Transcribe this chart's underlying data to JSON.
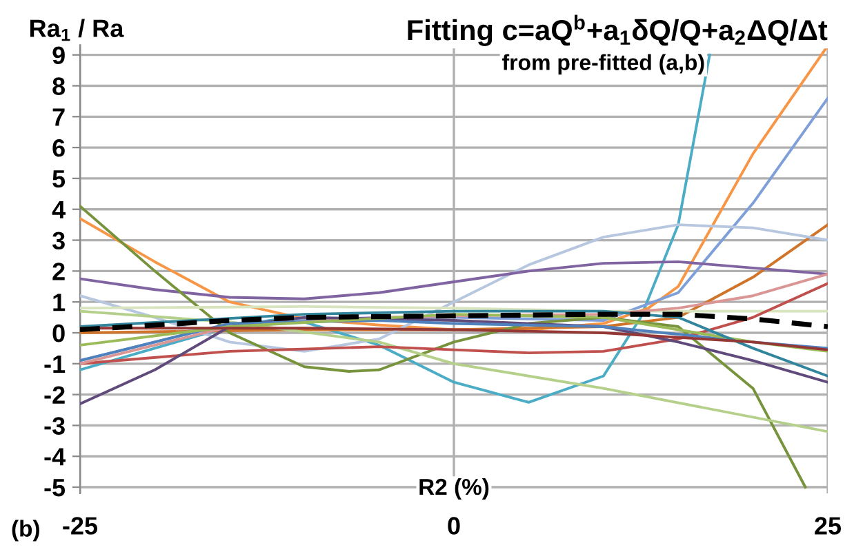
{
  "chart_data": {
    "type": "line",
    "title": "Fitting c=aQ$^{b}$+a$_{1}$δQ/Q+a$_{2}$ΔQ/Δt",
    "subtitle": "from pre-fitted (a,b)",
    "xlabel": "R2 (%)",
    "ylabel": "Ra$_{1}$ / Ra",
    "annotations": [
      "(b)"
    ],
    "xlim": [
      -25,
      25
    ],
    "ylim": [
      -5.2,
      9.35
    ],
    "xticks": [
      -25,
      0,
      25
    ],
    "yticks": [
      -5,
      -4,
      -3,
      -2,
      -1,
      0,
      1,
      2,
      3,
      4,
      5,
      6,
      7,
      8,
      9
    ],
    "grid": true,
    "marker": "none",
    "line_style": "solid",
    "series": [
      {
        "color": "#4bacc6",
        "x": [
          -25,
          -20,
          -15,
          -11,
          -5,
          0,
          5,
          10,
          12.5,
          15,
          17.1
        ],
        "values": [
          -1.2,
          -0.5,
          0.2,
          0.5,
          -0.4,
          -1.6,
          -2.25,
          -1.4,
          0.5,
          3.5,
          9.0
        ]
      },
      {
        "color": "#f79646",
        "x": [
          -25,
          -20,
          -15,
          -10,
          -5,
          0,
          5,
          10,
          13,
          15,
          20,
          25
        ],
        "values": [
          3.7,
          2.3,
          1.0,
          0.45,
          0.25,
          0.1,
          0.1,
          0.3,
          0.8,
          1.5,
          5.8,
          9.3
        ]
      },
      {
        "color": "#7f9fd8",
        "x": [
          -25,
          -15,
          -5,
          0,
          10,
          15,
          20,
          25
        ],
        "values": [
          -0.9,
          0.3,
          0.5,
          0.5,
          0.4,
          1.3,
          4.2,
          7.6
        ]
      },
      {
        "color": "#d0742a",
        "x": [
          -25,
          -10,
          0,
          10,
          15,
          20,
          25
        ],
        "values": [
          0.0,
          0.1,
          0.1,
          0.2,
          0.5,
          1.8,
          3.5
        ]
      },
      {
        "color": "#b8c7e0",
        "x": [
          -25,
          -20,
          -15,
          -10,
          -5,
          0,
          5,
          10,
          15,
          20,
          25
        ],
        "values": [
          1.2,
          0.5,
          -0.3,
          -0.6,
          -0.2,
          1.0,
          2.2,
          3.1,
          3.5,
          3.4,
          3.0
        ]
      },
      {
        "color": "#8064a2",
        "x": [
          -25,
          -20,
          -15,
          -10,
          -5,
          0,
          5,
          10,
          15,
          20,
          25
        ],
        "values": [
          1.75,
          1.4,
          1.15,
          1.1,
          1.3,
          1.65,
          2.0,
          2.25,
          2.3,
          2.1,
          1.9
        ]
      },
      {
        "color": "#77933c",
        "x": [
          -25,
          -20,
          -15,
          -10,
          -7,
          -5,
          0,
          5,
          10,
          15,
          20,
          23.5
        ],
        "values": [
          4.1,
          2.0,
          0.0,
          -1.1,
          -1.25,
          -1.2,
          -0.3,
          0.3,
          0.5,
          0.2,
          -1.8,
          -5.0
        ]
      },
      {
        "color": "#b5d08a",
        "x": [
          -25,
          -15,
          -5,
          0,
          10,
          25
        ],
        "values": [
          0.7,
          0.35,
          -0.3,
          -1.0,
          -1.8,
          -3.2
        ]
      },
      {
        "color": "#d7e4bd",
        "x": [
          -25,
          -10,
          0,
          10,
          25
        ],
        "values": [
          0.8,
          0.85,
          0.8,
          0.7,
          0.7
        ]
      },
      {
        "color": "#c0504d",
        "x": [
          -25,
          -15,
          -5,
          0,
          5,
          10,
          15,
          20,
          25
        ],
        "values": [
          -1.0,
          -0.6,
          -0.45,
          -0.55,
          -0.65,
          -0.6,
          -0.2,
          0.5,
          1.6
        ]
      },
      {
        "color": "#d99694",
        "x": [
          -25,
          -15,
          -5,
          0,
          10,
          15,
          20,
          25
        ],
        "values": [
          -1.0,
          0.2,
          0.5,
          0.55,
          0.6,
          0.8,
          1.2,
          1.9
        ]
      },
      {
        "color": "#604a7b",
        "x": [
          -25,
          -20,
          -15,
          -10,
          0,
          10,
          15,
          20,
          25
        ],
        "values": [
          -2.3,
          -1.2,
          0.2,
          0.5,
          0.4,
          0.2,
          -0.3,
          -0.9,
          -1.6
        ]
      },
      {
        "color": "#4f81bd",
        "x": [
          -25,
          -15,
          -5,
          0,
          10,
          20,
          25
        ],
        "values": [
          -0.9,
          0.3,
          0.4,
          0.3,
          0.2,
          -0.3,
          -0.5
        ]
      },
      {
        "color": "#9bbb59",
        "x": [
          -25,
          -15,
          0,
          10,
          20,
          25
        ],
        "values": [
          -0.4,
          0.2,
          0.6,
          0.5,
          -0.3,
          -0.6
        ]
      },
      {
        "color": "#31859c",
        "x": [
          -25,
          -10,
          0,
          10,
          15,
          20,
          25
        ],
        "values": [
          0.2,
          0.6,
          0.7,
          0.7,
          0.5,
          -0.5,
          -1.4
        ]
      },
      {
        "color": "#953735",
        "x": [
          -25,
          -10,
          0,
          10,
          20,
          25
        ],
        "values": [
          0.15,
          0.15,
          0.1,
          0.0,
          -0.3,
          -0.55
        ]
      },
      {
        "color": "#000000",
        "line_style": "dashed",
        "x": [
          -25,
          -15,
          -10,
          0,
          10,
          15,
          20,
          25
        ],
        "values": [
          0.1,
          0.4,
          0.5,
          0.55,
          0.6,
          0.6,
          0.45,
          0.2
        ]
      }
    ]
  }
}
